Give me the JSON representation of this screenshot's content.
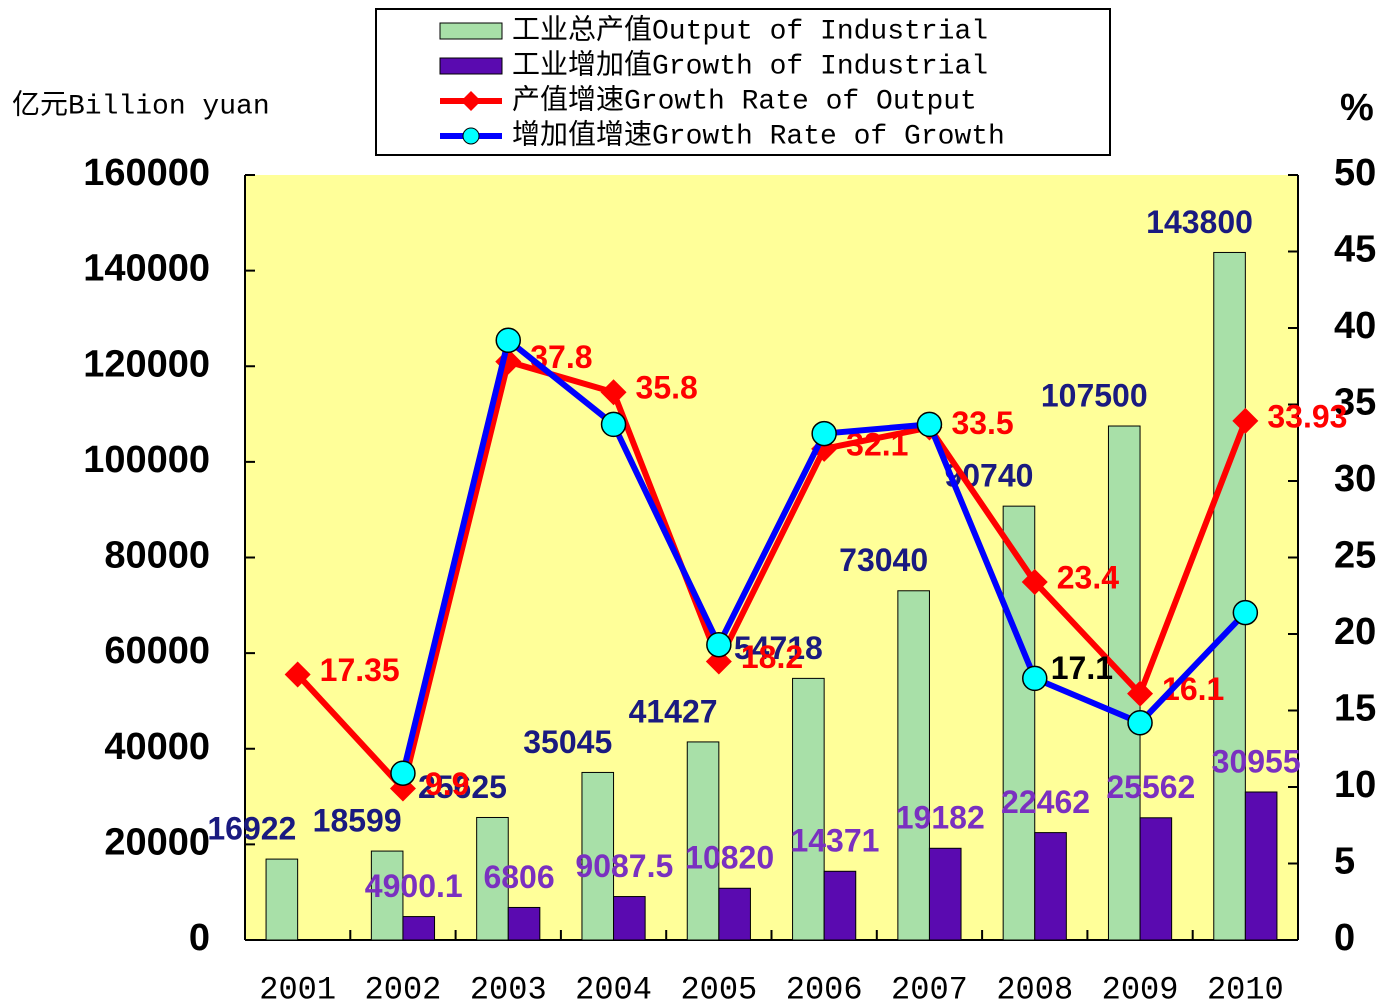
{
  "chart_data": {
    "type": "bar-line",
    "y_label": "亿元Billion yuan",
    "y2_label": "%",
    "categories": [
      "2001",
      "2002",
      "2003",
      "2004",
      "2005",
      "2006",
      "2007",
      "2008",
      "2009",
      "2010"
    ],
    "series": [
      {
        "name": "工业总产值Output of Industrial",
        "type": "bar",
        "color": "#A8E0A8",
        "label_color": "#1A1A80",
        "values": [
          16922,
          18599,
          25625,
          35045,
          41427,
          54718,
          73040,
          90740,
          107500,
          143800
        ]
      },
      {
        "name": "工业增加值Growth of Industrial",
        "type": "bar",
        "color": "#5A0AB0",
        "label_color": "#7A30C0",
        "values": [
          null,
          4900.1,
          6806,
          9087.5,
          10820,
          14371,
          19182,
          22462,
          25562,
          30955
        ]
      },
      {
        "name": "产值增速Growth Rate of Output",
        "type": "line",
        "axis": "y2",
        "color": "#FF0000",
        "marker": "diamond",
        "marker_color": "#FF0000",
        "label_color": "#FF0000",
        "values": [
          17.35,
          9.9,
          37.8,
          35.8,
          18.2,
          32.1,
          33.5,
          23.4,
          16.1,
          33.93
        ]
      },
      {
        "name": "增加值增速Growth Rate of Growth",
        "type": "line",
        "axis": "y2",
        "color": "#0000FF",
        "marker": "circle",
        "marker_color": "#00FFFF",
        "label_color": "#000000",
        "values": [
          null,
          10.9,
          39.2,
          33.7,
          19.3,
          33.1,
          33.7,
          17.1,
          14.2,
          21.4
        ],
        "value_labels": [
          null,
          null,
          null,
          null,
          null,
          null,
          null,
          "17.1",
          null,
          null
        ]
      }
    ],
    "ylim": [
      0,
      160000
    ],
    "yticks": [
      0,
      20000,
      40000,
      60000,
      80000,
      100000,
      120000,
      140000,
      160000
    ],
    "y2lim": [
      0,
      50
    ],
    "y2ticks": [
      0,
      5,
      10,
      15,
      20,
      25,
      30,
      35,
      40,
      45,
      50
    ]
  }
}
